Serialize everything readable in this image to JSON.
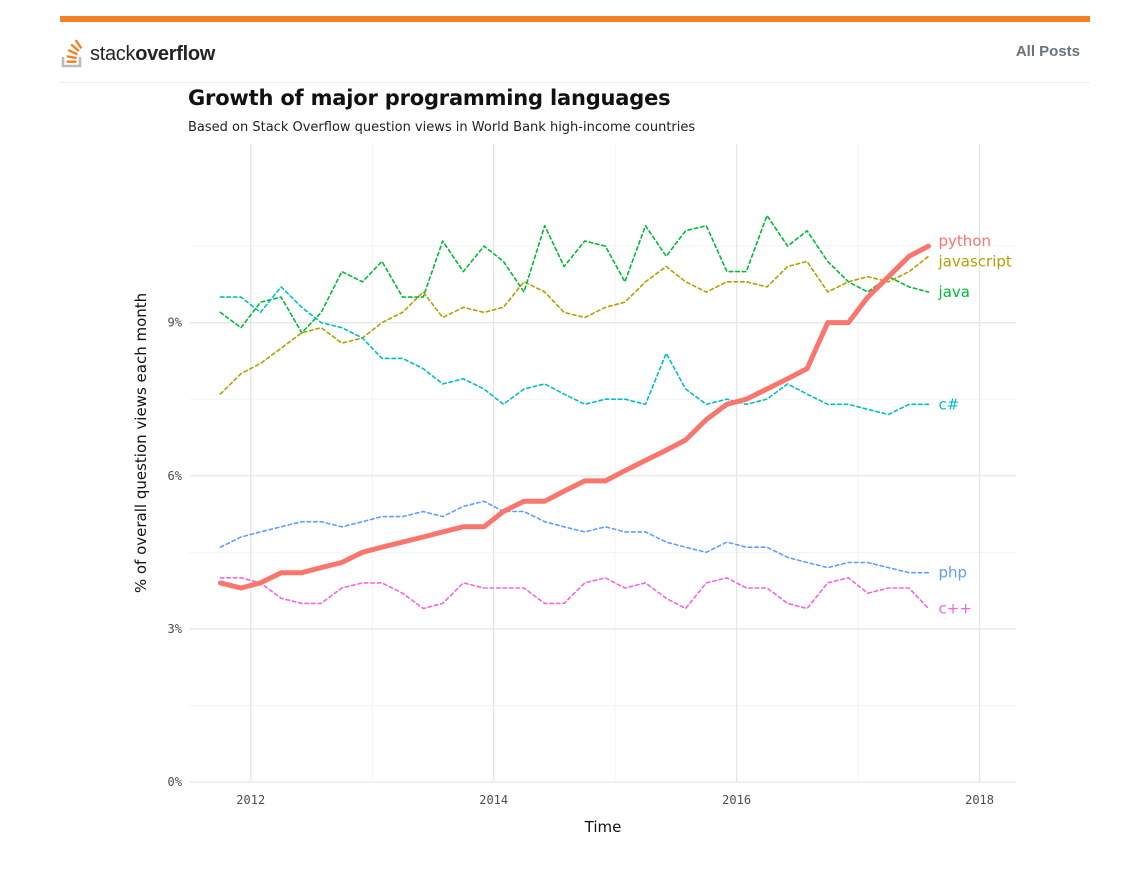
{
  "site": {
    "logo_light": "stack",
    "logo_bold": "overflow",
    "nav_link": "All Posts",
    "accent_color": "#f48024"
  },
  "chart_data": {
    "type": "line",
    "title": "Growth of major programming languages",
    "subtitle": "Based on Stack Overflow question views in World Bank high-income countries",
    "xlabel": "Time",
    "ylabel": "% of overall question views each month",
    "xlim": [
      2011.5,
      2018.3
    ],
    "ylim": [
      0,
      12.5
    ],
    "xticks": [
      2012,
      2014,
      2016,
      2018
    ],
    "xtick_labels": [
      "2012",
      "2014",
      "2016",
      "2018"
    ],
    "yticks": [
      0,
      3,
      6,
      9
    ],
    "ytick_labels": [
      "0%",
      "3%",
      "6%",
      "9%"
    ],
    "grid": true,
    "legend": "direct labels at line ends (right)",
    "series": [
      {
        "name": "python",
        "color": "#f8766d",
        "style": "solid",
        "x": [
          2011.75,
          2011.92,
          2012.08,
          2012.25,
          2012.42,
          2012.58,
          2012.75,
          2012.92,
          2013.08,
          2013.25,
          2013.42,
          2013.58,
          2013.75,
          2013.92,
          2014.08,
          2014.25,
          2014.42,
          2014.58,
          2014.75,
          2014.92,
          2015.08,
          2015.25,
          2015.42,
          2015.58,
          2015.75,
          2015.92,
          2016.08,
          2016.25,
          2016.42,
          2016.58,
          2016.75,
          2016.92,
          2017.08,
          2017.25,
          2017.42,
          2017.58
        ],
        "values": [
          3.9,
          3.8,
          3.9,
          4.1,
          4.1,
          4.2,
          4.3,
          4.5,
          4.6,
          4.7,
          4.8,
          4.9,
          5.0,
          5.0,
          5.3,
          5.5,
          5.5,
          5.7,
          5.9,
          5.9,
          6.1,
          6.3,
          6.5,
          6.7,
          7.1,
          7.4,
          7.5,
          7.7,
          7.9,
          8.1,
          9.0,
          9.0,
          9.5,
          9.9,
          10.3,
          10.5
        ]
      },
      {
        "name": "javascript",
        "color": "#b79f00",
        "style": "dashed",
        "x": [
          2011.75,
          2011.92,
          2012.08,
          2012.25,
          2012.42,
          2012.58,
          2012.75,
          2012.92,
          2013.08,
          2013.25,
          2013.42,
          2013.58,
          2013.75,
          2013.92,
          2014.08,
          2014.25,
          2014.42,
          2014.58,
          2014.75,
          2014.92,
          2015.08,
          2015.25,
          2015.42,
          2015.58,
          2015.75,
          2015.92,
          2016.08,
          2016.25,
          2016.42,
          2016.58,
          2016.75,
          2016.92,
          2017.08,
          2017.25,
          2017.42,
          2017.58
        ],
        "values": [
          7.6,
          8.0,
          8.2,
          8.5,
          8.8,
          8.9,
          8.6,
          8.7,
          9.0,
          9.2,
          9.6,
          9.1,
          9.3,
          9.2,
          9.3,
          9.8,
          9.6,
          9.2,
          9.1,
          9.3,
          9.4,
          9.8,
          10.1,
          9.8,
          9.6,
          9.8,
          9.8,
          9.7,
          10.1,
          10.2,
          9.6,
          9.8,
          9.9,
          9.8,
          10.0,
          10.3
        ]
      },
      {
        "name": "java",
        "color": "#00ba38",
        "style": "dashed",
        "x": [
          2011.75,
          2011.92,
          2012.08,
          2012.25,
          2012.42,
          2012.58,
          2012.75,
          2012.92,
          2013.08,
          2013.25,
          2013.42,
          2013.58,
          2013.75,
          2013.92,
          2014.08,
          2014.25,
          2014.42,
          2014.58,
          2014.75,
          2014.92,
          2015.08,
          2015.25,
          2015.42,
          2015.58,
          2015.75,
          2015.92,
          2016.08,
          2016.25,
          2016.42,
          2016.58,
          2016.75,
          2016.92,
          2017.08,
          2017.25,
          2017.42,
          2017.58
        ],
        "values": [
          9.2,
          8.9,
          9.4,
          9.5,
          8.8,
          9.2,
          10.0,
          9.8,
          10.2,
          9.5,
          9.5,
          10.6,
          10.0,
          10.5,
          10.2,
          9.6,
          10.9,
          10.1,
          10.6,
          10.5,
          9.8,
          10.9,
          10.3,
          10.8,
          10.9,
          10.0,
          10.0,
          11.1,
          10.5,
          10.8,
          10.2,
          9.8,
          9.6,
          9.9,
          9.7,
          9.6
        ]
      },
      {
        "name": "c#",
        "color": "#00bfc4",
        "style": "dashed",
        "x": [
          2011.75,
          2011.92,
          2012.08,
          2012.25,
          2012.42,
          2012.58,
          2012.75,
          2012.92,
          2013.08,
          2013.25,
          2013.42,
          2013.58,
          2013.75,
          2013.92,
          2014.08,
          2014.25,
          2014.42,
          2014.58,
          2014.75,
          2014.92,
          2015.08,
          2015.25,
          2015.42,
          2015.58,
          2015.75,
          2015.92,
          2016.08,
          2016.25,
          2016.42,
          2016.58,
          2016.75,
          2016.92,
          2017.08,
          2017.25,
          2017.42,
          2017.58
        ],
        "values": [
          9.5,
          9.5,
          9.2,
          9.7,
          9.3,
          9.0,
          8.9,
          8.7,
          8.3,
          8.3,
          8.1,
          7.8,
          7.9,
          7.7,
          7.4,
          7.7,
          7.8,
          7.6,
          7.4,
          7.5,
          7.5,
          7.4,
          8.4,
          7.7,
          7.4,
          7.5,
          7.4,
          7.5,
          7.8,
          7.6,
          7.4,
          7.4,
          7.3,
          7.2,
          7.4,
          7.4
        ]
      },
      {
        "name": "php",
        "color": "#619cff",
        "style": "dashed",
        "x": [
          2011.75,
          2011.92,
          2012.08,
          2012.25,
          2012.42,
          2012.58,
          2012.75,
          2012.92,
          2013.08,
          2013.25,
          2013.42,
          2013.58,
          2013.75,
          2013.92,
          2014.08,
          2014.25,
          2014.42,
          2014.58,
          2014.75,
          2014.92,
          2015.08,
          2015.25,
          2015.42,
          2015.58,
          2015.75,
          2015.92,
          2016.08,
          2016.25,
          2016.42,
          2016.58,
          2016.75,
          2016.92,
          2017.08,
          2017.25,
          2017.42,
          2017.58
        ],
        "values": [
          4.6,
          4.8,
          4.9,
          5.0,
          5.1,
          5.1,
          5.0,
          5.1,
          5.2,
          5.2,
          5.3,
          5.2,
          5.4,
          5.5,
          5.3,
          5.3,
          5.1,
          5.0,
          4.9,
          5.0,
          4.9,
          4.9,
          4.7,
          4.6,
          4.5,
          4.7,
          4.6,
          4.6,
          4.4,
          4.3,
          4.2,
          4.3,
          4.3,
          4.2,
          4.1,
          4.1
        ]
      },
      {
        "name": "c++",
        "color": "#f564e3",
        "style": "dashed",
        "x": [
          2011.75,
          2011.92,
          2012.08,
          2012.25,
          2012.42,
          2012.58,
          2012.75,
          2012.92,
          2013.08,
          2013.25,
          2013.42,
          2013.58,
          2013.75,
          2013.92,
          2014.08,
          2014.25,
          2014.42,
          2014.58,
          2014.75,
          2014.92,
          2015.08,
          2015.25,
          2015.42,
          2015.58,
          2015.75,
          2015.92,
          2016.08,
          2016.25,
          2016.42,
          2016.58,
          2016.75,
          2016.92,
          2017.08,
          2017.25,
          2017.42,
          2017.58
        ],
        "values": [
          4.0,
          4.0,
          3.9,
          3.6,
          3.5,
          3.5,
          3.8,
          3.9,
          3.9,
          3.7,
          3.4,
          3.5,
          3.9,
          3.8,
          3.8,
          3.8,
          3.5,
          3.5,
          3.9,
          4.0,
          3.8,
          3.9,
          3.6,
          3.4,
          3.9,
          4.0,
          3.8,
          3.8,
          3.5,
          3.4,
          3.9,
          4.0,
          3.7,
          3.8,
          3.8,
          3.4
        ]
      }
    ]
  }
}
